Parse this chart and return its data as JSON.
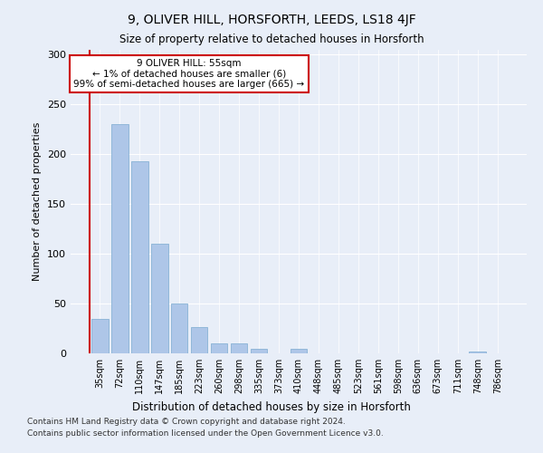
{
  "title": "9, OLIVER HILL, HORSFORTH, LEEDS, LS18 4JF",
  "subtitle": "Size of property relative to detached houses in Horsforth",
  "xlabel": "Distribution of detached houses by size in Horsforth",
  "ylabel": "Number of detached properties",
  "categories": [
    "35sqm",
    "72sqm",
    "110sqm",
    "147sqm",
    "185sqm",
    "223sqm",
    "260sqm",
    "298sqm",
    "335sqm",
    "373sqm",
    "410sqm",
    "448sqm",
    "485sqm",
    "523sqm",
    "561sqm",
    "598sqm",
    "636sqm",
    "673sqm",
    "711sqm",
    "748sqm",
    "786sqm"
  ],
  "values": [
    35,
    230,
    193,
    110,
    50,
    26,
    10,
    10,
    5,
    0,
    5,
    0,
    0,
    0,
    0,
    0,
    0,
    0,
    0,
    2,
    0
  ],
  "bar_color": "#aec6e8",
  "bar_edge_color": "#7aaad0",
  "highlight_line_color": "#cc0000",
  "annotation_text": "9 OLIVER HILL: 55sqm\n← 1% of detached houses are smaller (6)\n99% of semi-detached houses are larger (665) →",
  "annotation_box_color": "#ffffff",
  "annotation_box_edge": "#cc0000",
  "ylim": [
    0,
    305
  ],
  "yticks": [
    0,
    50,
    100,
    150,
    200,
    250,
    300
  ],
  "footer1": "Contains HM Land Registry data © Crown copyright and database right 2024.",
  "footer2": "Contains public sector information licensed under the Open Government Licence v3.0.",
  "bg_color": "#e8eef8",
  "plot_bg_color": "#e8eef8"
}
